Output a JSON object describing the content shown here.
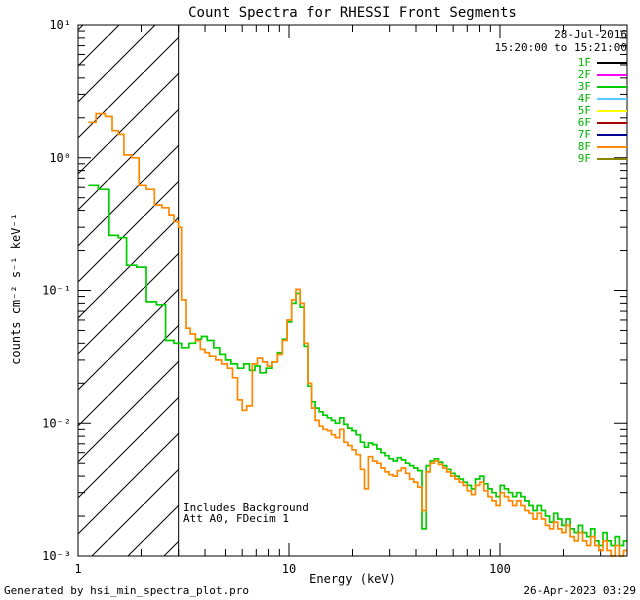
{
  "title": "Count Spectra for RHESSI Front Segments",
  "footer": {
    "left": "Generated by hsi_min_spectra_plot.pro",
    "right": "26-Apr-2023 03:29"
  },
  "annotations": {
    "date": "28-Jul-2016",
    "time_range": "15:20:00 to 15:21:00",
    "note_line1": "Includes Background",
    "note_line2": "Att A0, FDecim 1"
  },
  "legend": {
    "label_color": "#00b400",
    "entries": [
      {
        "label": "1F",
        "color": "#000000"
      },
      {
        "label": "2F",
        "color": "#ff00ff"
      },
      {
        "label": "3F",
        "color": "#00cc00"
      },
      {
        "label": "4F",
        "color": "#55ccff"
      },
      {
        "label": "5F",
        "color": "#ffff00"
      },
      {
        "label": "6F",
        "color": "#aa0000"
      },
      {
        "label": "7F",
        "color": "#000099"
      },
      {
        "label": "8F",
        "color": "#ff8800"
      },
      {
        "label": "9F",
        "color": "#888800"
      }
    ]
  },
  "chart_data": {
    "type": "line",
    "step": true,
    "title": "Count Spectra for RHESSI Front Segments",
    "xlabel": "Energy (keV)",
    "ylabel": "counts cm⁻² s⁻¹ keV⁻¹",
    "xscale": "log",
    "yscale": "log",
    "xlim": [
      1,
      400
    ],
    "ylim": [
      0.001,
      10
    ],
    "grid": false,
    "legend_position": "top-right-inside",
    "hatch_region": {
      "xmin": 1,
      "xmax": 3
    },
    "xticks": [
      {
        "value": 1,
        "label": "1"
      },
      {
        "value": 10,
        "label": "10"
      },
      {
        "value": 100,
        "label": "100"
      }
    ],
    "yticks": [
      {
        "value": 10,
        "label": "10¹"
      },
      {
        "value": 1,
        "label": "10⁰"
      },
      {
        "value": 0.1,
        "label": "10⁻¹"
      },
      {
        "value": 0.01,
        "label": "10⁻²"
      },
      {
        "value": 0.001,
        "label": "10⁻³"
      }
    ],
    "series": [
      {
        "name": "3F",
        "color": "#00cc00",
        "points": [
          [
            1.12,
            0.62
          ],
          [
            1.25,
            0.58
          ],
          [
            1.4,
            0.26
          ],
          [
            1.55,
            0.25
          ],
          [
            1.7,
            0.155
          ],
          [
            1.9,
            0.15
          ],
          [
            2.1,
            0.082
          ],
          [
            2.35,
            0.078
          ],
          [
            2.6,
            0.042
          ],
          [
            2.85,
            0.04
          ],
          [
            3.1,
            0.037
          ],
          [
            3.35,
            0.04
          ],
          [
            3.6,
            0.043
          ],
          [
            3.85,
            0.045
          ],
          [
            4.1,
            0.042
          ],
          [
            4.4,
            0.037
          ],
          [
            4.7,
            0.033
          ],
          [
            5.0,
            0.03
          ],
          [
            5.3,
            0.028
          ],
          [
            5.7,
            0.026
          ],
          [
            6.1,
            0.028
          ],
          [
            6.5,
            0.025
          ],
          [
            6.9,
            0.027
          ],
          [
            7.3,
            0.024
          ],
          [
            7.8,
            0.026
          ],
          [
            8.3,
            0.029
          ],
          [
            8.8,
            0.034
          ],
          [
            9.3,
            0.043
          ],
          [
            9.8,
            0.058
          ],
          [
            10.3,
            0.08
          ],
          [
            10.8,
            0.095
          ],
          [
            11.3,
            0.075
          ],
          [
            11.8,
            0.038
          ],
          [
            12.3,
            0.019
          ],
          [
            12.8,
            0.0145
          ],
          [
            13.3,
            0.013
          ],
          [
            13.9,
            0.0122
          ],
          [
            14.5,
            0.0115
          ],
          [
            15.2,
            0.011
          ],
          [
            15.9,
            0.0105
          ],
          [
            16.6,
            0.01
          ],
          [
            17.4,
            0.011
          ],
          [
            18.2,
            0.0098
          ],
          [
            19.0,
            0.0092
          ],
          [
            19.9,
            0.0088
          ],
          [
            20.8,
            0.0082
          ],
          [
            21.8,
            0.0072
          ],
          [
            22.8,
            0.0066
          ],
          [
            23.8,
            0.0071
          ],
          [
            24.9,
            0.0069
          ],
          [
            26.1,
            0.0064
          ],
          [
            27.3,
            0.006
          ],
          [
            28.5,
            0.0057
          ],
          [
            29.8,
            0.0054
          ],
          [
            31.2,
            0.0052
          ],
          [
            32.6,
            0.0055
          ],
          [
            34.1,
            0.0053
          ],
          [
            35.7,
            0.005
          ],
          [
            37.3,
            0.0048
          ],
          [
            39.0,
            0.0046
          ],
          [
            40.8,
            0.0044
          ],
          [
            42.7,
            0.0016
          ],
          [
            44.7,
            0.0048
          ],
          [
            46.7,
            0.0052
          ],
          [
            48.9,
            0.0054
          ],
          [
            51.1,
            0.0051
          ],
          [
            53.5,
            0.0048
          ],
          [
            55.9,
            0.0045
          ],
          [
            58.5,
            0.0042
          ],
          [
            61.2,
            0.004
          ],
          [
            64.0,
            0.0038
          ],
          [
            67.0,
            0.0036
          ],
          [
            70.0,
            0.0034
          ],
          [
            73.3,
            0.0032
          ],
          [
            76.6,
            0.0038
          ],
          [
            80.2,
            0.004
          ],
          [
            83.8,
            0.0035
          ],
          [
            87.7,
            0.0032
          ],
          [
            91.7,
            0.003
          ],
          [
            95.9,
            0.0028
          ],
          [
            100.3,
            0.0034
          ],
          [
            104.9,
            0.0032
          ],
          [
            109.7,
            0.003
          ],
          [
            114.8,
            0.0028
          ],
          [
            120.0,
            0.003
          ],
          [
            125.6,
            0.0028
          ],
          [
            131.3,
            0.0026
          ],
          [
            137.3,
            0.0024
          ],
          [
            143.6,
            0.0022
          ],
          [
            150.2,
            0.0024
          ],
          [
            157.1,
            0.0022
          ],
          [
            164.3,
            0.002
          ],
          [
            171.9,
            0.0018
          ],
          [
            179.7,
            0.0021
          ],
          [
            188.0,
            0.0019
          ],
          [
            196.6,
            0.0017
          ],
          [
            205.6,
            0.0019
          ],
          [
            215.0,
            0.0016
          ],
          [
            224.9,
            0.0015
          ],
          [
            235.2,
            0.0017
          ],
          [
            246.0,
            0.0015
          ],
          [
            257.3,
            0.0014
          ],
          [
            269.1,
            0.0016
          ],
          [
            281.4,
            0.0013
          ],
          [
            294.3,
            0.0012
          ],
          [
            307.8,
            0.0015
          ],
          [
            321.9,
            0.0013
          ],
          [
            336.7,
            0.0012
          ],
          [
            352.1,
            0.0014
          ],
          [
            368.2,
            0.0012
          ],
          [
            385.1,
            0.0013
          ]
        ]
      },
      {
        "name": "8F",
        "color": "#ff8800",
        "points": [
          [
            1.12,
            1.85
          ],
          [
            1.22,
            2.15
          ],
          [
            1.35,
            2.05
          ],
          [
            1.45,
            1.6
          ],
          [
            1.55,
            1.5
          ],
          [
            1.65,
            1.05
          ],
          [
            1.8,
            1.0
          ],
          [
            1.95,
            0.62
          ],
          [
            2.1,
            0.58
          ],
          [
            2.3,
            0.44
          ],
          [
            2.5,
            0.42
          ],
          [
            2.7,
            0.37
          ],
          [
            2.85,
            0.33
          ],
          [
            3.0,
            0.3
          ],
          [
            3.1,
            0.085
          ],
          [
            3.25,
            0.052
          ],
          [
            3.4,
            0.047
          ],
          [
            3.6,
            0.042
          ],
          [
            3.8,
            0.036
          ],
          [
            4.0,
            0.034
          ],
          [
            4.2,
            0.032
          ],
          [
            4.5,
            0.03
          ],
          [
            4.8,
            0.028
          ],
          [
            5.1,
            0.026
          ],
          [
            5.4,
            0.022
          ],
          [
            5.7,
            0.015
          ],
          [
            6.0,
            0.0125
          ],
          [
            6.3,
            0.0135
          ],
          [
            6.7,
            0.028
          ],
          [
            7.1,
            0.031
          ],
          [
            7.5,
            0.029
          ],
          [
            7.9,
            0.027
          ],
          [
            8.3,
            0.029
          ],
          [
            8.8,
            0.033
          ],
          [
            9.3,
            0.042
          ],
          [
            9.8,
            0.06
          ],
          [
            10.3,
            0.085
          ],
          [
            10.8,
            0.102
          ],
          [
            11.3,
            0.08
          ],
          [
            11.8,
            0.04
          ],
          [
            12.3,
            0.02
          ],
          [
            12.8,
            0.013
          ],
          [
            13.3,
            0.0105
          ],
          [
            13.9,
            0.0095
          ],
          [
            14.5,
            0.009
          ],
          [
            15.2,
            0.0088
          ],
          [
            15.9,
            0.0082
          ],
          [
            16.6,
            0.0078
          ],
          [
            17.4,
            0.009
          ],
          [
            18.2,
            0.0072
          ],
          [
            19.0,
            0.0068
          ],
          [
            19.9,
            0.0063
          ],
          [
            20.8,
            0.0058
          ],
          [
            21.8,
            0.0045
          ],
          [
            22.8,
            0.0032
          ],
          [
            23.8,
            0.0056
          ],
          [
            24.9,
            0.0052
          ],
          [
            26.1,
            0.005
          ],
          [
            27.3,
            0.0046
          ],
          [
            28.5,
            0.0043
          ],
          [
            29.8,
            0.0041
          ],
          [
            31.2,
            0.004
          ],
          [
            32.6,
            0.0044
          ],
          [
            34.1,
            0.0046
          ],
          [
            35.7,
            0.0042
          ],
          [
            37.3,
            0.0038
          ],
          [
            39.0,
            0.0036
          ],
          [
            40.8,
            0.0033
          ],
          [
            42.7,
            0.0022
          ],
          [
            44.7,
            0.0043
          ],
          [
            46.7,
            0.005
          ],
          [
            48.9,
            0.0052
          ],
          [
            51.1,
            0.0049
          ],
          [
            53.5,
            0.0046
          ],
          [
            55.9,
            0.0043
          ],
          [
            58.5,
            0.004
          ],
          [
            61.2,
            0.0038
          ],
          [
            64.0,
            0.0036
          ],
          [
            67.0,
            0.0034
          ],
          [
            70.0,
            0.0031
          ],
          [
            73.3,
            0.0029
          ],
          [
            76.6,
            0.0034
          ],
          [
            80.2,
            0.0036
          ],
          [
            83.8,
            0.0031
          ],
          [
            87.7,
            0.0028
          ],
          [
            91.7,
            0.0026
          ],
          [
            95.9,
            0.0024
          ],
          [
            100.3,
            0.003
          ],
          [
            104.9,
            0.0028
          ],
          [
            109.7,
            0.0026
          ],
          [
            114.8,
            0.0024
          ],
          [
            120.0,
            0.0026
          ],
          [
            125.6,
            0.0024
          ],
          [
            131.3,
            0.0022
          ],
          [
            137.3,
            0.0021
          ],
          [
            143.6,
            0.0019
          ],
          [
            150.2,
            0.0021
          ],
          [
            157.1,
            0.0019
          ],
          [
            164.3,
            0.0017
          ],
          [
            171.9,
            0.0016
          ],
          [
            179.7,
            0.0018
          ],
          [
            188.0,
            0.0016
          ],
          [
            196.6,
            0.0015
          ],
          [
            205.6,
            0.0017
          ],
          [
            215.0,
            0.0014
          ],
          [
            224.9,
            0.0013
          ],
          [
            235.2,
            0.0015
          ],
          [
            246.0,
            0.0013
          ],
          [
            257.3,
            0.0012
          ],
          [
            269.1,
            0.0014
          ],
          [
            281.4,
            0.0012
          ],
          [
            294.3,
            0.0011
          ],
          [
            307.8,
            0.0013
          ],
          [
            321.9,
            0.0011
          ],
          [
            336.7,
            0.001
          ],
          [
            352.1,
            0.0012
          ],
          [
            368.2,
            0.001
          ],
          [
            385.1,
            0.0011
          ]
        ]
      }
    ]
  }
}
